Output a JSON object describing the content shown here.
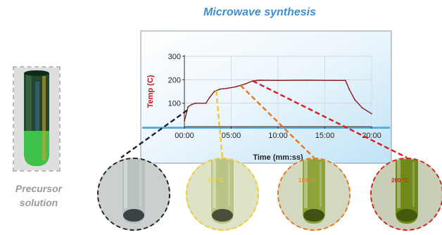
{
  "title": "Microwave synthesis",
  "precursor_label": "Precursor solution",
  "precursor_label_lines": [
    "Precursor",
    "solution"
  ],
  "chart_data": {
    "type": "line",
    "xlabel": "Time (mm:ss)",
    "ylabel": "Temp (C)",
    "x_tick_labels": [
      "00:00",
      "05:00",
      "10:00",
      "15:00",
      "20:00"
    ],
    "y_tick_labels": [
      "100",
      "200",
      "300"
    ],
    "xlim_minutes": [
      0,
      20
    ],
    "ylim": [
      0,
      300
    ],
    "series": [
      {
        "color": "#8b1a1a",
        "points": [
          {
            "x": 0.0,
            "y": 25
          },
          {
            "x": 0.4,
            "y": 85
          },
          {
            "x": 0.8,
            "y": 95
          },
          {
            "x": 1.2,
            "y": 100
          },
          {
            "x": 2.3,
            "y": 100
          },
          {
            "x": 2.7,
            "y": 125
          },
          {
            "x": 3.2,
            "y": 150
          },
          {
            "x": 3.8,
            "y": 160
          },
          {
            "x": 4.5,
            "y": 163
          },
          {
            "x": 5.5,
            "y": 170
          },
          {
            "x": 6.5,
            "y": 182
          },
          {
            "x": 7.3,
            "y": 195
          },
          {
            "x": 8.0,
            "y": 198
          },
          {
            "x": 10.0,
            "y": 197
          },
          {
            "x": 13.0,
            "y": 198
          },
          {
            "x": 16.0,
            "y": 197
          },
          {
            "x": 17.2,
            "y": 197
          },
          {
            "x": 17.6,
            "y": 160
          },
          {
            "x": 18.2,
            "y": 115
          },
          {
            "x": 19.0,
            "y": 80
          },
          {
            "x": 20.0,
            "y": 55
          }
        ]
      }
    ],
    "grid": true
  },
  "samples": [
    {
      "key": "initial",
      "label": "",
      "border_color": "#222222",
      "liquid": "#b8c2c0",
      "deposit": "#3a4344",
      "bg": "#c9d0cf",
      "anchor_minutes": 0.3
    },
    {
      "key": "160",
      "label": "160 °C",
      "label_color": "#f4d54a",
      "border_color": "#f0c830",
      "liquid": "#b8c585",
      "deposit": "#4a4e3a",
      "bg": "#dfe3c6",
      "anchor_minutes": 3.4
    },
    {
      "key": "180",
      "label": "180 °C",
      "label_color": "#f08a30",
      "border_color": "#e8741a",
      "liquid": "#8ea43a",
      "deposit": "#3f5214",
      "bg": "#d3d9c0",
      "anchor_minutes": 6.0
    },
    {
      "key": "200",
      "label": "200 °C",
      "label_color": "#e02020",
      "border_color": "#d81c1c",
      "liquid": "#6f8a16",
      "deposit": "#435a0c",
      "bg": "#c9ceb7",
      "anchor_minutes": 7.3
    }
  ]
}
